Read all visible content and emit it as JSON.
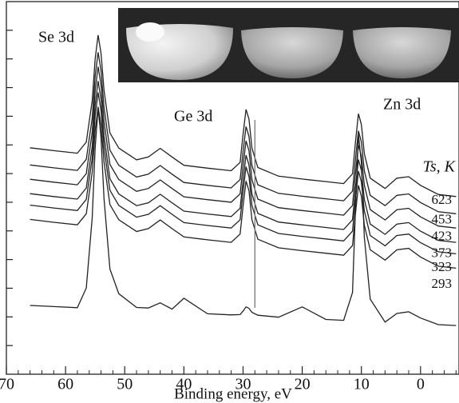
{
  "chart_data": {
    "type": "line",
    "x_label": "Binding energy, eV",
    "annotations": [
      "Se 3d",
      "Ge 3d",
      "Zn 3d"
    ],
    "legend_title": "Ts, K",
    "xlim": [
      70,
      -6.5
    ],
    "xticks": [
      70,
      60,
      50,
      40,
      30,
      20,
      10,
      0
    ],
    "xminor": [
      68,
      66,
      64,
      62,
      58,
      56,
      54,
      52,
      48,
      46,
      44,
      42,
      38,
      36,
      34,
      32,
      28,
      26,
      24,
      22,
      18,
      16,
      14,
      12,
      8,
      6,
      4,
      2,
      -2,
      -4,
      -6
    ],
    "ylim": [
      0,
      13
    ],
    "yticks": [
      1,
      2,
      3,
      4,
      5,
      6,
      7,
      8,
      9,
      10,
      11,
      12
    ],
    "vline": 28,
    "x": [
      66,
      62,
      58,
      56.5,
      55.5,
      55,
      54.5,
      54,
      53.5,
      52.5,
      51,
      48,
      46,
      44,
      42,
      40,
      36,
      32,
      30.5,
      30,
      29.5,
      29,
      28.5,
      27.5,
      24,
      20,
      16,
      13,
      11.5,
      11,
      10.5,
      10,
      9.5,
      8.5,
      6,
      4,
      2,
      0,
      -3,
      -6
    ],
    "series": [
      {
        "name": "623",
        "color": "#222222",
        "values": [
          7.9,
          7.8,
          7.71,
          8.1,
          9.54,
          11.0,
          11.83,
          11.19,
          9.91,
          8.42,
          7.89,
          7.48,
          7.58,
          7.88,
          7.58,
          7.29,
          7.19,
          7.1,
          7.39,
          8.37,
          9.24,
          8.9,
          7.89,
          7.21,
          6.91,
          6.81,
          6.72,
          6.65,
          6.99,
          8.1,
          9.09,
          8.71,
          7.7,
          6.84,
          6.48,
          6.84,
          6.89,
          6.59,
          6.27,
          6.2
        ]
      },
      {
        "name": "453",
        "color": "#222222",
        "values": [
          7.3,
          7.2,
          7.11,
          7.5,
          8.94,
          10.4,
          11.23,
          10.59,
          9.31,
          7.82,
          7.29,
          6.88,
          6.98,
          7.28,
          6.98,
          6.69,
          6.59,
          6.5,
          6.79,
          7.77,
          8.64,
          8.3,
          7.29,
          6.61,
          6.31,
          6.21,
          6.12,
          6.05,
          6.39,
          7.5,
          8.49,
          8.11,
          7.1,
          6.24,
          5.88,
          6.24,
          6.29,
          5.99,
          5.67,
          5.6
        ]
      },
      {
        "name": "423",
        "color": "#222222",
        "values": [
          6.8,
          6.7,
          6.61,
          7.0,
          8.44,
          9.9,
          10.73,
          10.09,
          8.81,
          7.32,
          6.79,
          6.38,
          6.48,
          6.78,
          6.48,
          6.19,
          6.09,
          6.0,
          6.29,
          7.27,
          8.14,
          7.8,
          6.79,
          6.11,
          5.81,
          5.71,
          5.62,
          5.55,
          5.89,
          7.0,
          7.99,
          7.61,
          6.6,
          5.74,
          5.38,
          5.74,
          5.79,
          5.49,
          5.17,
          5.1
        ]
      },
      {
        "name": "373",
        "color": "#222222",
        "values": [
          6.3,
          6.2,
          6.11,
          6.5,
          7.94,
          9.4,
          10.23,
          9.59,
          8.31,
          6.82,
          6.29,
          5.88,
          5.98,
          6.28,
          5.98,
          5.69,
          5.59,
          5.5,
          5.79,
          6.77,
          7.64,
          7.3,
          6.29,
          5.61,
          5.31,
          5.21,
          5.12,
          5.05,
          5.39,
          6.5,
          7.49,
          7.11,
          6.1,
          5.24,
          4.88,
          5.24,
          5.29,
          4.99,
          4.67,
          4.6
        ]
      },
      {
        "name": "323",
        "color": "#222222",
        "values": [
          5.9,
          5.8,
          5.71,
          6.1,
          7.54,
          9.0,
          9.83,
          9.19,
          7.91,
          6.42,
          5.89,
          5.48,
          5.58,
          5.88,
          5.58,
          5.29,
          5.19,
          5.1,
          5.39,
          6.37,
          7.24,
          6.9,
          5.89,
          5.21,
          4.91,
          4.81,
          4.72,
          4.65,
          4.99,
          6.1,
          7.09,
          6.71,
          5.7,
          4.84,
          4.48,
          4.84,
          4.89,
          4.59,
          4.27,
          4.2
        ]
      },
      {
        "name": "293",
        "color": "#222222",
        "values": [
          5.4,
          5.3,
          5.21,
          5.6,
          7.04,
          8.5,
          9.33,
          8.69,
          7.41,
          5.92,
          5.39,
          4.98,
          5.08,
          5.38,
          5.08,
          4.79,
          4.69,
          4.6,
          4.89,
          5.87,
          6.74,
          6.4,
          5.39,
          4.71,
          4.41,
          4.31,
          4.22,
          4.15,
          4.49,
          5.6,
          6.59,
          6.21,
          5.2,
          4.34,
          3.98,
          4.34,
          4.39,
          4.09,
          3.77,
          3.7
        ]
      },
      {
        "name": null,
        "color": "#222222",
        "values": [
          2.4,
          2.36,
          2.32,
          3.01,
          5.45,
          7.89,
          9.29,
          8.23,
          6.13,
          3.67,
          2.81,
          2.33,
          2.31,
          2.49,
          2.27,
          2.65,
          2.11,
          2.07,
          2.08,
          2.2,
          2.35,
          2.3,
          2.16,
          2.06,
          1.99,
          2.35,
          1.91,
          1.88,
          2.85,
          5.77,
          8.36,
          7.39,
          4.78,
          2.62,
          1.82,
          2.12,
          2.18,
          1.96,
          1.73,
          1.7
        ]
      }
    ]
  }
}
